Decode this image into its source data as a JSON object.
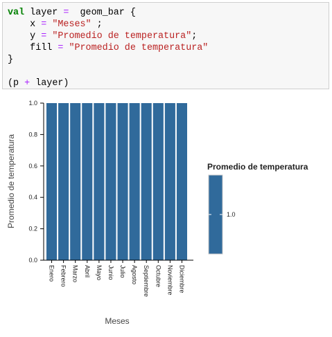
{
  "code": {
    "line1": {
      "kw": "val",
      "name": "layer",
      "op": "=",
      "fn": "geom_bar {"
    },
    "line2": {
      "key": "x",
      "op": "=",
      "str": "\"Meses\"",
      "tail": " ;"
    },
    "line3": {
      "key": "y",
      "op": "=",
      "str": "\"Promedio de temperatura\"",
      "tail": ";"
    },
    "line4": {
      "key": "fill",
      "op": "=",
      "str": "\"Promedio de temperatura\""
    },
    "line5": "}",
    "line7": {
      "open": "(p",
      "op": "+",
      "rest": "layer)"
    }
  },
  "chart_data": {
    "type": "bar",
    "categories": [
      "Enero",
      "Febrero",
      "Marzo",
      "Abril",
      "Mayo",
      "Junio",
      "Julio",
      "Agosto",
      "Septiembre",
      "Octubre",
      "Noviembre",
      "Diciembre"
    ],
    "values": [
      1.0,
      1.0,
      1.0,
      1.0,
      1.0,
      1.0,
      1.0,
      1.0,
      1.0,
      1.0,
      1.0,
      1.0
    ],
    "xlabel": "Meses",
    "ylabel": "Promedio de temperatura",
    "ylim": [
      0,
      1.0
    ],
    "yticks": [
      "0.0",
      "0.2",
      "0.4",
      "0.6",
      "0.8",
      "1.0"
    ],
    "legend": {
      "title": "Promedio de temperatura",
      "tick": "1.0",
      "placement": "right"
    },
    "bar_color": "#306a9b"
  }
}
